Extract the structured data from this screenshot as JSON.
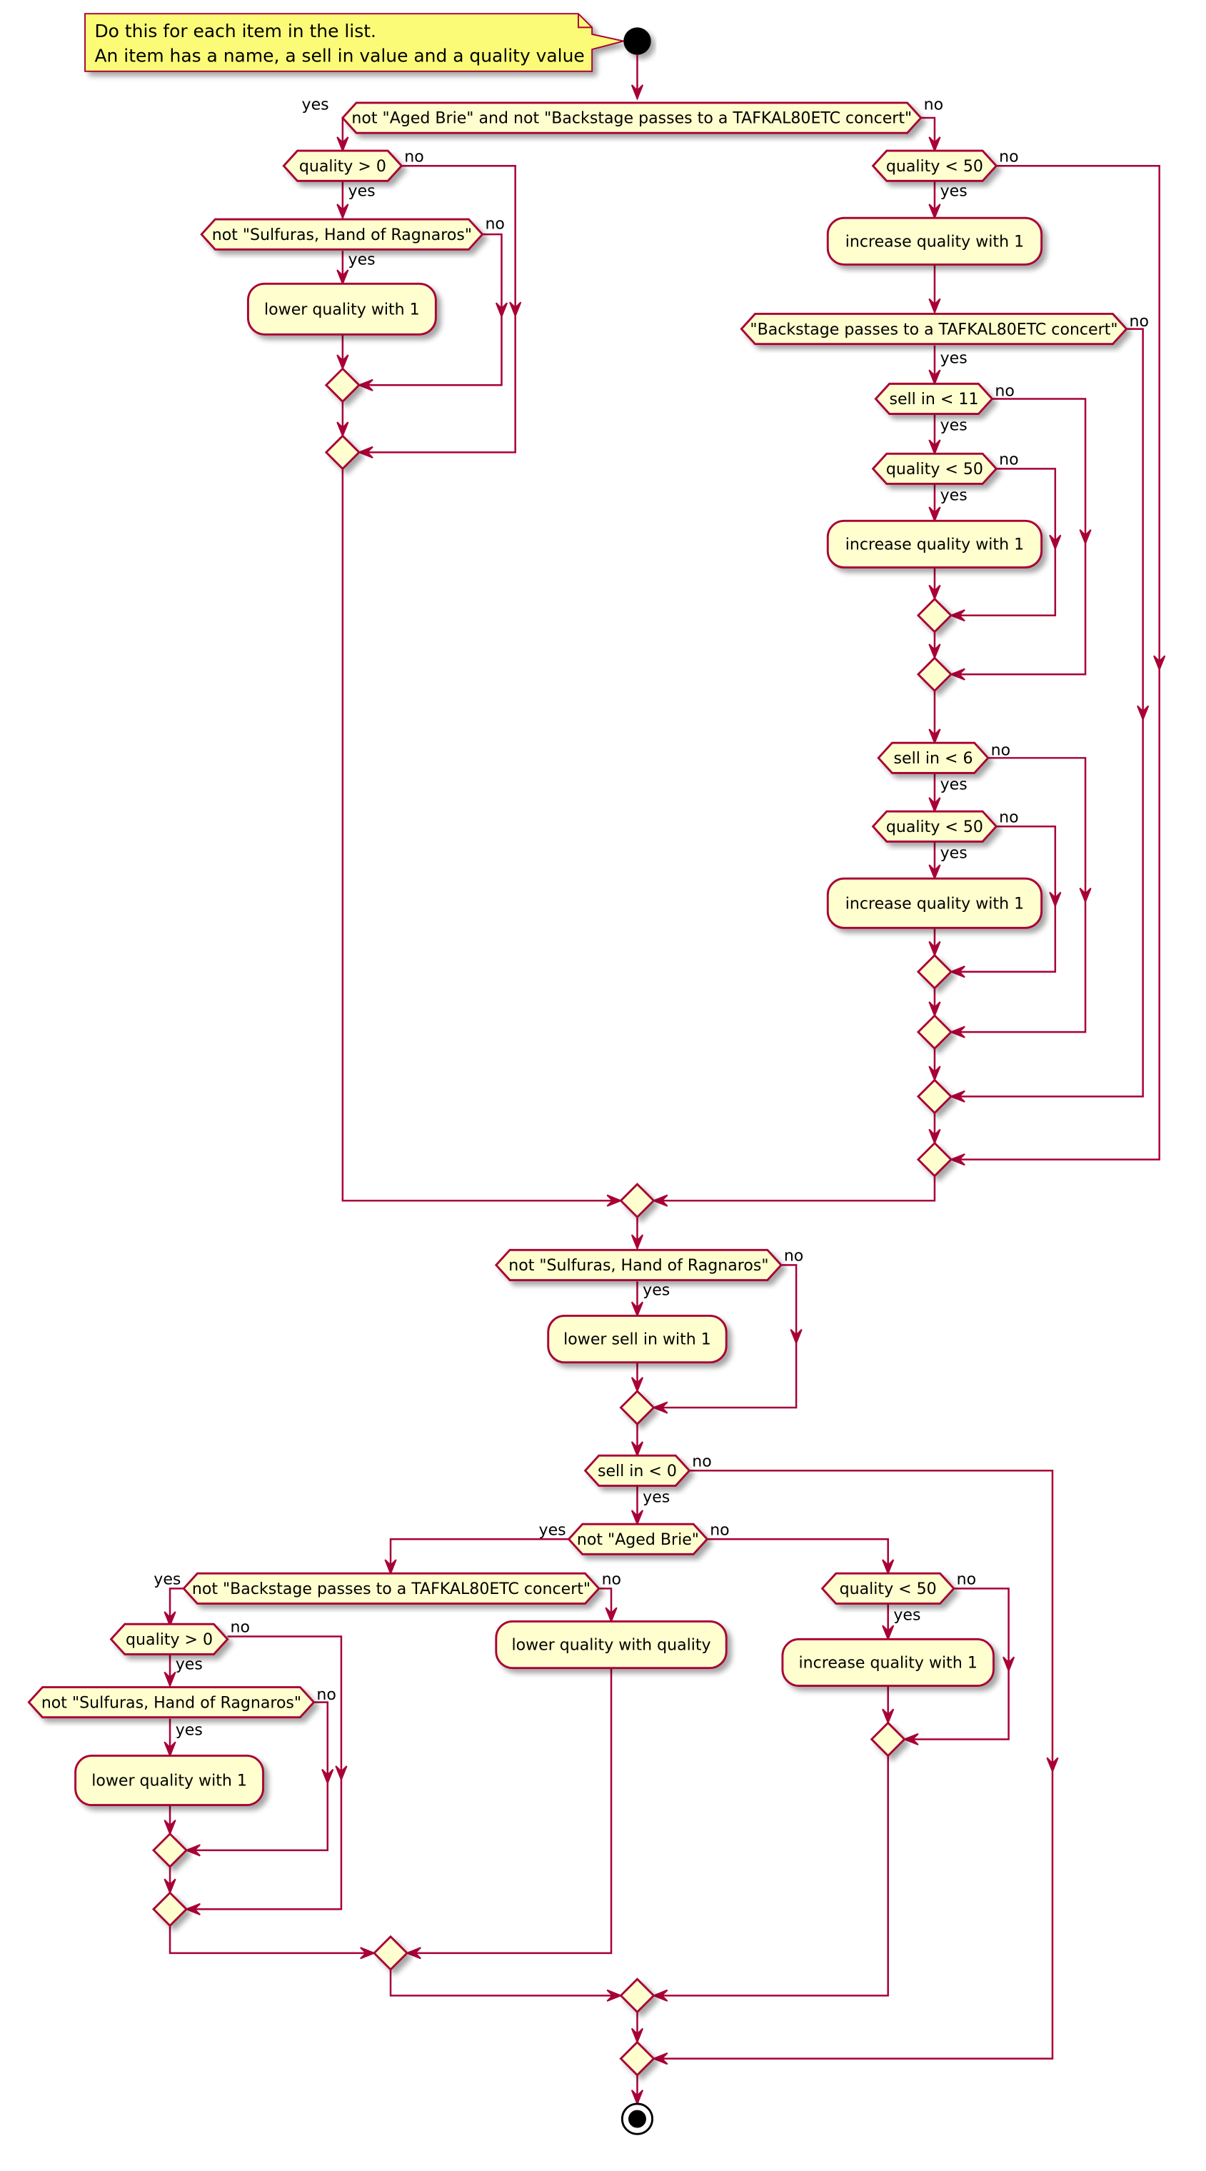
{
  "note": {
    "line1": "Do this for each item in the list.",
    "line2": "An item has a name, a sell in value and a quality value"
  },
  "labels": {
    "yes": "yes",
    "no": "no"
  },
  "decisions": {
    "d_not_brie_not_backstage": "not \"Aged Brie\" and not \"Backstage passes to a TAFKAL80ETC concert\"",
    "d_quality_gt_0_a": "quality > 0",
    "d_not_sulfuras_a": "not \"Sulfuras, Hand of Ragnaros\"",
    "d_quality_lt_50_a": "quality < 50",
    "d_backstage": "\"Backstage passes to a TAFKAL80ETC concert\"",
    "d_sell_in_lt_11": "sell in < 11",
    "d_quality_lt_50_b": "quality < 50",
    "d_sell_in_lt_6": "sell in < 6",
    "d_quality_lt_50_c": "quality < 50",
    "d_not_sulfuras_b": "not \"Sulfuras, Hand of Ragnaros\"",
    "d_sell_in_lt_0": "sell in < 0",
    "d_not_aged_brie": "not \"Aged Brie\"",
    "d_not_backstage": "not \"Backstage passes to a TAFKAL80ETC concert\"",
    "d_quality_gt_0_b": "quality > 0",
    "d_not_sulfuras_c": "not \"Sulfuras, Hand of Ragnaros\"",
    "d_quality_lt_50_d": "quality < 50"
  },
  "actions": {
    "a_lower_quality_1": "lower quality with 1",
    "a_increase_quality_1": "increase quality with 1",
    "a_increase_quality_2": "increase quality with 1",
    "a_increase_quality_3": "increase quality with 1",
    "a_lower_sell_in": "lower sell in with 1",
    "a_lower_quality_2": "lower quality with 1",
    "a_lower_quality_with_quality": "lower quality with quality",
    "a_increase_quality_4": "increase quality with 1"
  },
  "colors": {
    "stroke": "#A80036",
    "fill": "#FEFECE",
    "note_fill": "#FBFB77",
    "start": "#000000"
  }
}
